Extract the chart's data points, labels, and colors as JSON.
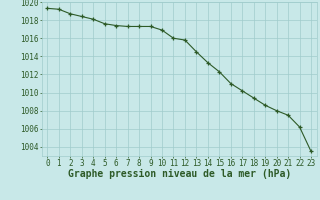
{
  "x": [
    0,
    1,
    2,
    3,
    4,
    5,
    6,
    7,
    8,
    9,
    10,
    11,
    12,
    13,
    14,
    15,
    16,
    17,
    18,
    19,
    20,
    21,
    22,
    23
  ],
  "y": [
    1019.3,
    1019.2,
    1018.7,
    1018.4,
    1018.1,
    1017.6,
    1017.4,
    1017.3,
    1017.3,
    1017.3,
    1016.9,
    1016.0,
    1015.8,
    1014.5,
    1013.3,
    1012.3,
    1011.0,
    1010.2,
    1009.4,
    1008.6,
    1008.0,
    1007.5,
    1006.2,
    1003.5
  ],
  "ylim": [
    1003,
    1020
  ],
  "xlim": [
    -0.5,
    23.5
  ],
  "yticks": [
    1004,
    1006,
    1008,
    1010,
    1012,
    1014,
    1016,
    1018,
    1020
  ],
  "xticks": [
    0,
    1,
    2,
    3,
    4,
    5,
    6,
    7,
    8,
    9,
    10,
    11,
    12,
    13,
    14,
    15,
    16,
    17,
    18,
    19,
    20,
    21,
    22,
    23
  ],
  "line_color": "#2d5a27",
  "marker_color": "#2d5a27",
  "bg_color": "#c8e8e8",
  "grid_color": "#a0cccc",
  "xlabel": "Graphe pression niveau de la mer (hPa)",
  "xlabel_color": "#2d5a27",
  "tick_color": "#2d5a27",
  "xlabel_fontsize": 7,
  "tick_fontsize": 5.5
}
